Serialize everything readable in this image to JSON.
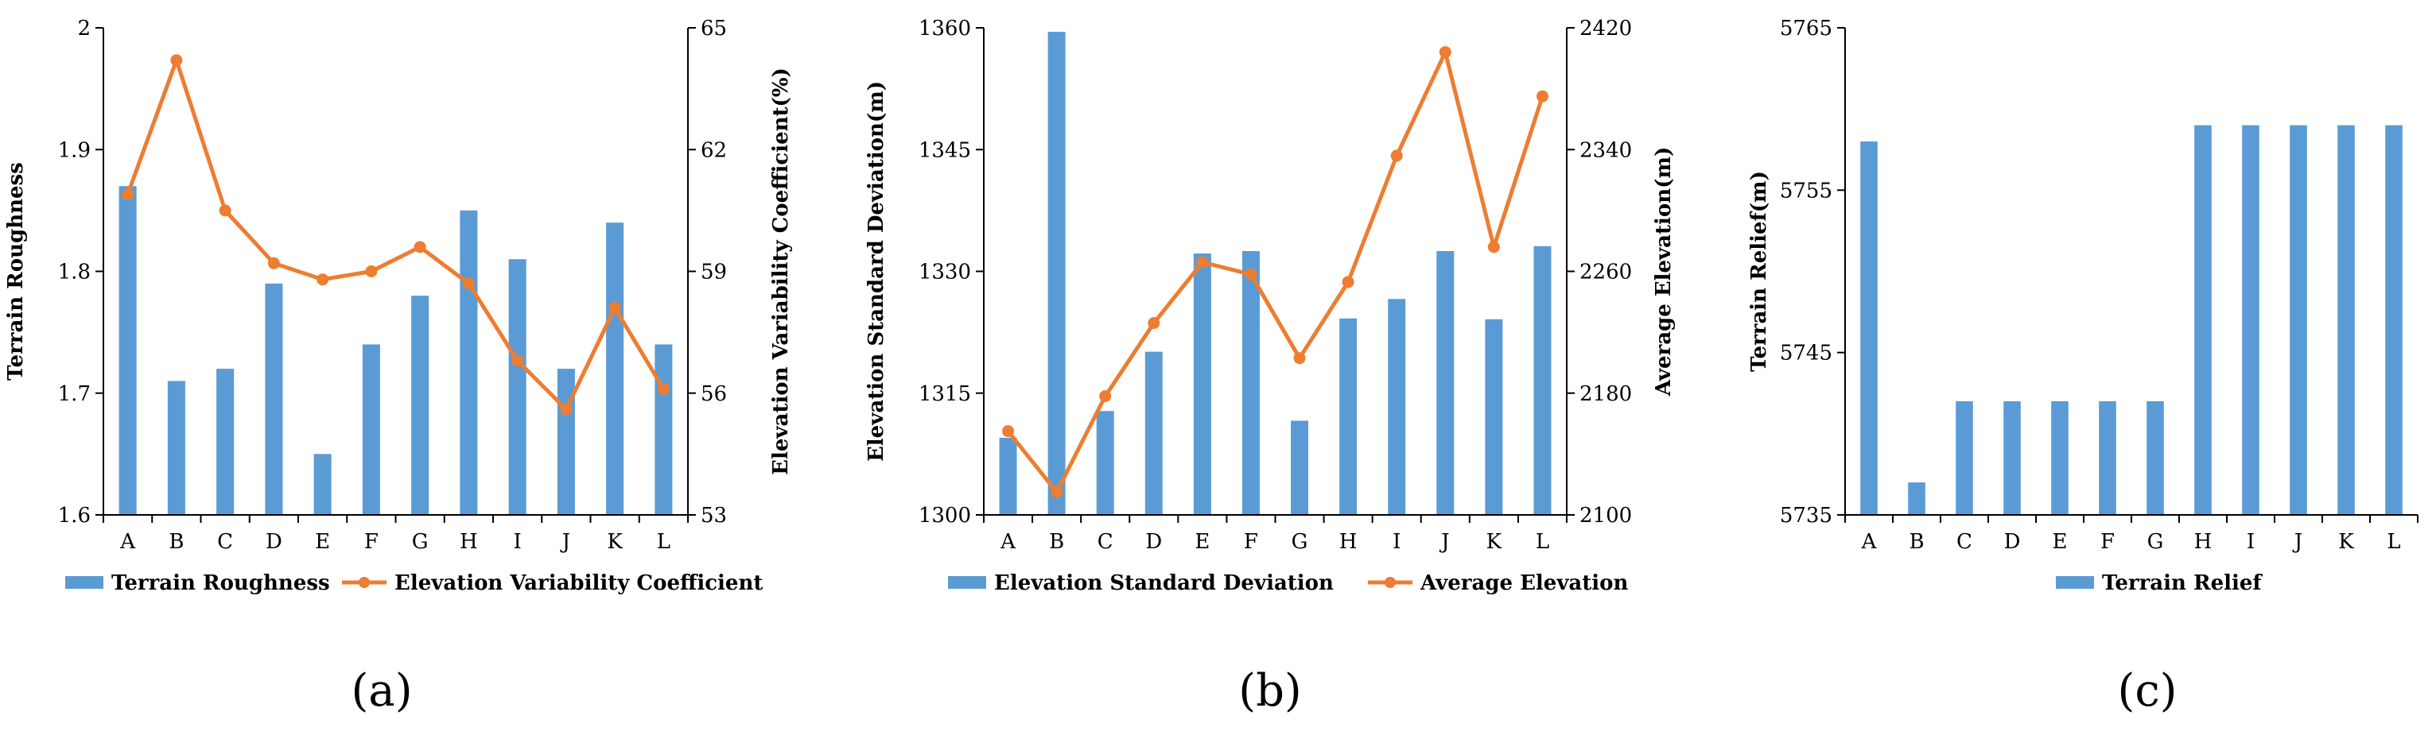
{
  "colors": {
    "bar": "#5b9bd5",
    "line": "#ed7d31",
    "axis": "#000000"
  },
  "chart_data": [
    {
      "panel": "(a)",
      "type": "bar+line",
      "categories": [
        "A",
        "B",
        "C",
        "D",
        "E",
        "F",
        "G",
        "H",
        "I",
        "J",
        "K",
        "L"
      ],
      "bar_series": {
        "name": "Terrain Roughness",
        "values": [
          1.87,
          1.71,
          1.72,
          1.79,
          1.65,
          1.74,
          1.78,
          1.85,
          1.81,
          1.72,
          1.84,
          1.74
        ]
      },
      "line_series": {
        "name": "Elevation Variability Coefficient",
        "values": [
          60.9,
          64.2,
          60.5,
          59.2,
          58.8,
          59.0,
          59.6,
          58.7,
          56.8,
          55.6,
          58.1,
          56.1
        ]
      },
      "ylabel": "Terrain Roughness",
      "ylim": [
        1.6,
        2.0
      ],
      "yticks": [
        "1.6",
        "1.7",
        "1.8",
        "1.9",
        "2"
      ],
      "y2label": "Elevation Variability Coefficient(%)",
      "y2lim": [
        53,
        65
      ],
      "y2ticks": [
        "53",
        "56",
        "59",
        "62",
        "65"
      ],
      "legend": "bottom"
    },
    {
      "panel": "(b)",
      "type": "bar+line",
      "categories": [
        "A",
        "B",
        "C",
        "D",
        "E",
        "F",
        "G",
        "H",
        "I",
        "J",
        "K",
        "L"
      ],
      "bar_series": {
        "name": "Elevation Standard Deviation",
        "values": [
          1309.5,
          1359.5,
          1312.8,
          1320.1,
          1332.2,
          1332.5,
          1311.6,
          1324.2,
          1326.6,
          1332.5,
          1324.1,
          1333.1
        ]
      },
      "line_series": {
        "name": "Average Elevation",
        "values": [
          2155,
          2115,
          2178,
          2226,
          2266,
          2258,
          2203,
          2253,
          2336,
          2404,
          2276,
          2375
        ]
      },
      "ylabel": "Elevation Standard Deviation(m)",
      "ylim": [
        1300,
        1360
      ],
      "yticks": [
        "1300",
        "1315",
        "1330",
        "1345",
        "1360"
      ],
      "y2label": "Average Elevation(m)",
      "y2lim": [
        2100,
        2420
      ],
      "y2ticks": [
        "2100",
        "2180",
        "2260",
        "2340",
        "2420"
      ],
      "legend": "bottom"
    },
    {
      "panel": "(c)",
      "type": "bar",
      "categories": [
        "A",
        "B",
        "C",
        "D",
        "E",
        "F",
        "G",
        "H",
        "I",
        "J",
        "K",
        "L"
      ],
      "bar_series": {
        "name": "Terrain Relief",
        "values": [
          5758,
          5737,
          5742,
          5742,
          5742,
          5742,
          5742,
          5759,
          5759,
          5759,
          5759,
          5759
        ]
      },
      "ylabel": "Terrain Relief(m)",
      "ylim": [
        5735,
        5765
      ],
      "yticks": [
        "5735",
        "5745",
        "5755",
        "5765"
      ],
      "legend": "bottom"
    }
  ]
}
